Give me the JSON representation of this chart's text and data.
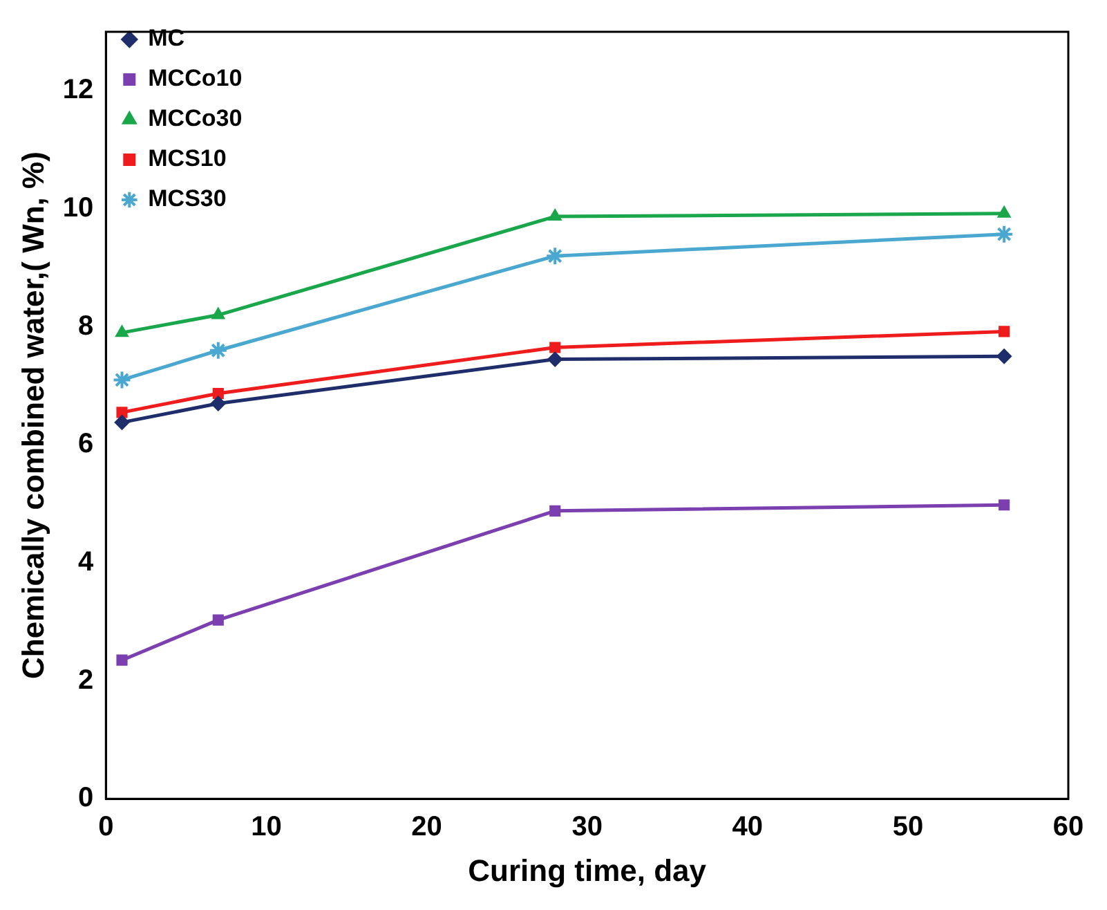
{
  "chart_data": {
    "type": "line",
    "xlabel": "Curing time, day",
    "ylabel": "Chemically combined water,( Wn, %)",
    "x": [
      1,
      7,
      28,
      56
    ],
    "series": [
      {
        "name": "MC",
        "color": "#1f2d6b",
        "marker": "diamond",
        "values": [
          6.38,
          6.7,
          7.45,
          7.5
        ]
      },
      {
        "name": "MCCo10",
        "color": "#7b3fb0",
        "marker": "square",
        "values": [
          2.35,
          3.03,
          4.88,
          4.98
        ]
      },
      {
        "name": "MCCo30",
        "color": "#1aa64a",
        "marker": "triangle",
        "values": [
          7.9,
          8.2,
          9.87,
          9.92
        ]
      },
      {
        "name": "MCS10",
        "color": "#ee1c1c",
        "marker": "square",
        "values": [
          6.55,
          6.87,
          7.65,
          7.92
        ]
      },
      {
        "name": "MCS30",
        "color": "#4aa8d0",
        "marker": "cross",
        "values": [
          7.1,
          7.6,
          9.2,
          9.57
        ]
      }
    ],
    "xlim": [
      0,
      60
    ],
    "xticks": [
      0,
      10,
      20,
      30,
      40,
      50,
      60
    ],
    "ylim": [
      0,
      13
    ],
    "yticks": [
      0,
      2,
      4,
      6,
      8,
      10,
      12
    ],
    "grid": false,
    "legend": "top left",
    "line_style": "solid"
  }
}
